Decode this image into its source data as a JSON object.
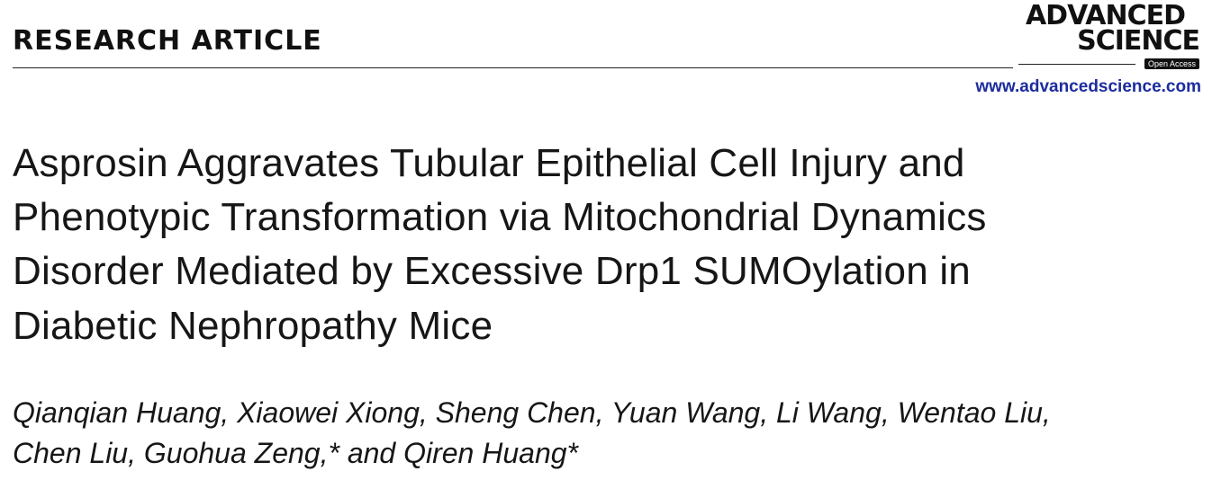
{
  "header": {
    "section": "RESEARCH ARTICLE",
    "journal_lines": [
      "ADVANCED",
      "SCIENCE"
    ],
    "badge": "Open Access",
    "url": "www.advancedscience.com"
  },
  "article": {
    "title_lines": [
      "Asprosin Aggravates Tubular Epithelial Cell Injury and",
      "Phenotypic Transformation via Mitochondrial Dynamics",
      "Disorder Mediated by Excessive Drp1 SUMOylation in",
      "Diabetic Nephropathy Mice"
    ],
    "author_lines": [
      "Qianqian Huang, Xiaowei Xiong, Sheng Chen, Yuan Wang, Li Wang, Wentao Liu,",
      "Chen Liu, Guohua Zeng,* and Qiren Huang*"
    ]
  }
}
